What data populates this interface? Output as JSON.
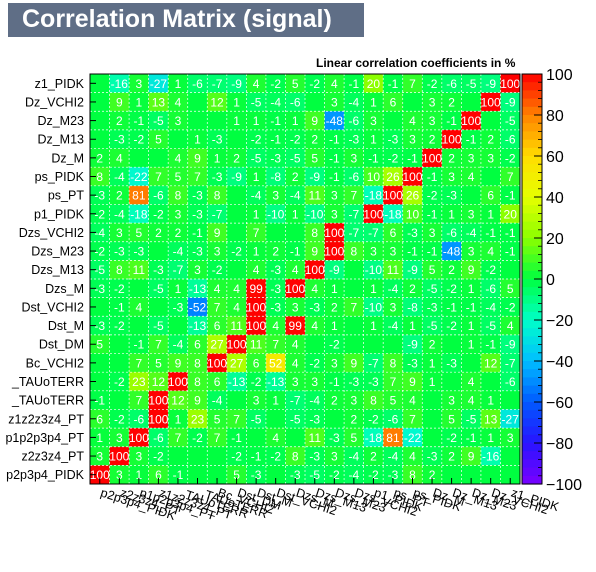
{
  "title": "Correlation Matrix (signal)",
  "colors": {
    "title_bg": "#5f6e86",
    "grid_line": "#ffffff",
    "cell_default": "#00ff40"
  },
  "chart_data": {
    "type": "heatmap",
    "title": "Correlation Matrix (signal)",
    "subtitle": "Linear correlation coefficients in %",
    "variables_bottom_to_top": [
      "p2p3p4_PIDK",
      "z2z3z4_PT",
      "p1p2p3p4_PT",
      "z1z2z3z4_PT",
      "_TAUoTERR",
      "_TAUoTERR",
      "Bc_VCHI2",
      "Dst_DM",
      "Dst_M",
      "Dst_VCHI2",
      "Dzs_M",
      "Dzs_M13",
      "Dzs_M23",
      "Dzs_VCHI2",
      "p1_PIDK",
      "ps_PT",
      "ps_PIDK",
      "Dz_M",
      "Dz_M13",
      "Dz_M23",
      "Dz_VCHI2",
      "z1_PIDK"
    ],
    "y_tick_labels_top_to_bottom": [
      "z1_PIDK",
      "Dz_VCHI2",
      "Dz_M23",
      "Dz_M13",
      "Dz_M",
      "ps_PIDK",
      "ps_PT",
      "p1_PIDK",
      "Dzs_VCHI2",
      "Dzs_M23",
      "Dzs_M13",
      "Dzs_M",
      "Dst_VCHI2",
      "Dst_M",
      "Dst_DM",
      "Bc_VCHI2",
      "_TAUoTERR",
      "_TAUoTERR",
      "z1z2z3z4_PT",
      "p1p2p3p4_PT",
      "z2z3z4_PT",
      "p2p3p4_PIDK"
    ],
    "x_tick_labels": [
      "p2p3p4_PIDK",
      "z2z3z4_PT",
      "p1p2p3p4_PT",
      "z1z2z3z4_PT",
      "_TAUoTERR",
      "_TAUoTERR",
      "Bc_VCHI2",
      "Dst_DM",
      "Dst_M",
      "Dst_VCHI2",
      "Dzs_M",
      "Dzs_M13",
      "Dzs_M23",
      "Dzs_VCHI2",
      "p1_PIDK",
      "ps_PT",
      "ps_PIDK",
      "Dz_M",
      "Dz_M13",
      "Dz_M23",
      "Dz_VCHI2",
      "z1_PIDK"
    ],
    "rows_top_to_bottom": [
      [
        "",
        "-16",
        "3",
        "-27",
        "1",
        "-6",
        "-7",
        "-9",
        "4",
        "-2",
        "5",
        "-2",
        "4",
        "-1",
        "20",
        "-1",
        "7",
        "-2",
        "-6",
        "-5",
        "-9",
        "100"
      ],
      [
        "",
        "9",
        "1",
        "13",
        "4",
        "",
        "12",
        "1",
        "-5",
        "-4",
        "-6",
        "",
        "3",
        "-4",
        "1",
        "6",
        "",
        "3",
        "2",
        "",
        "100",
        "-9"
      ],
      [
        "",
        "2",
        "-1",
        "-5",
        "3",
        "",
        "",
        "1",
        "1",
        "-1",
        "1",
        "9",
        "-48",
        "-6",
        "3",
        "",
        "4",
        "3",
        "-1",
        "100",
        "",
        "-5"
      ],
      [
        "",
        "-3",
        "-2",
        "5",
        "",
        "1",
        "-3",
        "",
        "-2",
        "-1",
        "-2",
        "2",
        "-1",
        "-3",
        "1",
        "-3",
        "3",
        "2",
        "100",
        "-1",
        "2",
        "-6"
      ],
      [
        "2",
        "4",
        "",
        "",
        "4",
        "9",
        "1",
        "2",
        "-5",
        "-3",
        "-5",
        "5",
        "-1",
        "3",
        "-1",
        "-2",
        "-1",
        "100",
        "2",
        "3",
        "3",
        "-2"
      ],
      [
        "8",
        "-4",
        "-22",
        "7",
        "5",
        "7",
        "-3",
        "-9",
        "1",
        "-8",
        "2",
        "-9",
        "-1",
        "-6",
        "10",
        "26",
        "100",
        "-1",
        "3",
        "4",
        "",
        "7"
      ],
      [
        "-3",
        "2",
        "81",
        "-6",
        "8",
        "-3",
        "8",
        "",
        "-4",
        "3",
        "-4",
        "11",
        "3",
        "7",
        "-18",
        "100",
        "26",
        "-2",
        "-3",
        "",
        "6",
        "-1"
      ],
      [
        "-2",
        "-4",
        "-18",
        "-2",
        "3",
        "-3",
        "-7",
        "",
        "1",
        "-10",
        "1",
        "-10",
        "3",
        "-7",
        "100",
        "-18",
        "10",
        "-1",
        "1",
        "3",
        "1",
        "20"
      ],
      [
        "-4",
        "3",
        "5",
        "2",
        "2",
        "-1",
        "9",
        "",
        "7",
        "",
        "",
        "8",
        "100",
        "-7",
        "-7",
        "6",
        "-3",
        "3",
        "-6",
        "-4",
        "-1",
        "-1"
      ],
      [
        "-2",
        "-3",
        "-3",
        "",
        "-4",
        "-3",
        "3",
        "-2",
        "1",
        "2",
        "-1",
        "9",
        "100",
        "8",
        "3",
        "3",
        "-1",
        "-1",
        "-48",
        "3",
        "4",
        "-1"
      ],
      [
        "-5",
        "8",
        "11",
        "-3",
        "-7",
        "3",
        "-2",
        "",
        "4",
        "-3",
        "4",
        "100",
        "-9",
        "",
        "-10",
        "11",
        "-9",
        "5",
        "2",
        "9",
        "-2",
        ""
      ],
      [
        "-3",
        "-2",
        "",
        "-5",
        "1",
        "-13",
        "4",
        "4",
        "99",
        "-3",
        "100",
        "4",
        "1",
        "",
        "1",
        "-4",
        "2",
        "-5",
        "-2",
        "1",
        "-6",
        "5"
      ],
      [
        "",
        "-1",
        "4",
        "",
        "-3",
        "-52",
        "7",
        "4",
        "100",
        "-3",
        "3",
        "-3",
        "2",
        "7",
        "-10",
        "3",
        "-8",
        "-3",
        "-1",
        "-1",
        "-4",
        "-2"
      ],
      [
        "-3",
        "-2",
        "",
        "-5",
        "",
        "-13",
        "6",
        "11",
        "100",
        "4",
        "99",
        "4",
        "1",
        "",
        "1",
        "-4",
        "1",
        "-5",
        "-2",
        "1",
        "-5",
        "4"
      ],
      [
        "5",
        "",
        "-1",
        "7",
        "-4",
        "6",
        "27",
        "100",
        "11",
        "7",
        "4",
        "",
        "-2",
        "",
        "",
        "",
        "-9",
        "2",
        "",
        "1",
        "-1",
        "-9"
      ],
      [
        "",
        "",
        "7",
        "5",
        "9",
        "8",
        "100",
        "27",
        "6",
        "52",
        "4",
        "-2",
        "3",
        "9",
        "-7",
        "8",
        "-3",
        "1",
        "-3",
        "",
        "12",
        "-7"
      ],
      [
        "",
        "-2",
        "23",
        "12",
        "100",
        "8",
        "6",
        "-13",
        "-2",
        "-13",
        "3",
        "3",
        "-1",
        "-3",
        "-3",
        "7",
        "9",
        "1",
        "",
        "4",
        "",
        "-6"
      ],
      [
        "-1",
        "",
        "7",
        "100",
        "12",
        "9",
        "-4",
        "",
        "3",
        "1",
        "-7",
        "-4",
        "2",
        "3",
        "8",
        "5",
        "4",
        "",
        "3",
        "4",
        "1",
        ""
      ],
      [
        "6",
        "-2",
        "-6",
        "100",
        "1",
        "23",
        "5",
        "7",
        "-5",
        "",
        "-5",
        "-3",
        "",
        "2",
        "-2",
        "-6",
        "7",
        "",
        "5",
        "-5",
        "13",
        "-27"
      ],
      [
        "1",
        "3",
        "100",
        "-6",
        "7",
        "-2",
        "7",
        "-1",
        "",
        "4",
        "",
        "11",
        "-3",
        "5",
        "-18",
        "81",
        "-22",
        "",
        "-2",
        "-1",
        "1",
        "3"
      ],
      [
        "3",
        "100",
        "3",
        "-2",
        "",
        "",
        "",
        "-2",
        "-1",
        "-2",
        "8",
        "-3",
        "3",
        "-4",
        "2",
        "-4",
        "4",
        "-3",
        "2",
        "9",
        "-16",
        ""
      ],
      [
        "100",
        "3",
        "1",
        "6",
        "-1",
        "",
        "",
        "5",
        "-3",
        "",
        "-3",
        "-5",
        "-2",
        "-4",
        "-2",
        "-3",
        "8",
        "2",
        "",
        "",
        "",
        ""
      ]
    ],
    "z_range": [
      -100,
      100
    ],
    "colorbar_ticks": [
      "100",
      "80",
      "60",
      "40",
      "20",
      "0",
      "−20",
      "−40",
      "−60",
      "−80",
      "−100"
    ],
    "grid": true,
    "legend": "colorbar-right"
  }
}
